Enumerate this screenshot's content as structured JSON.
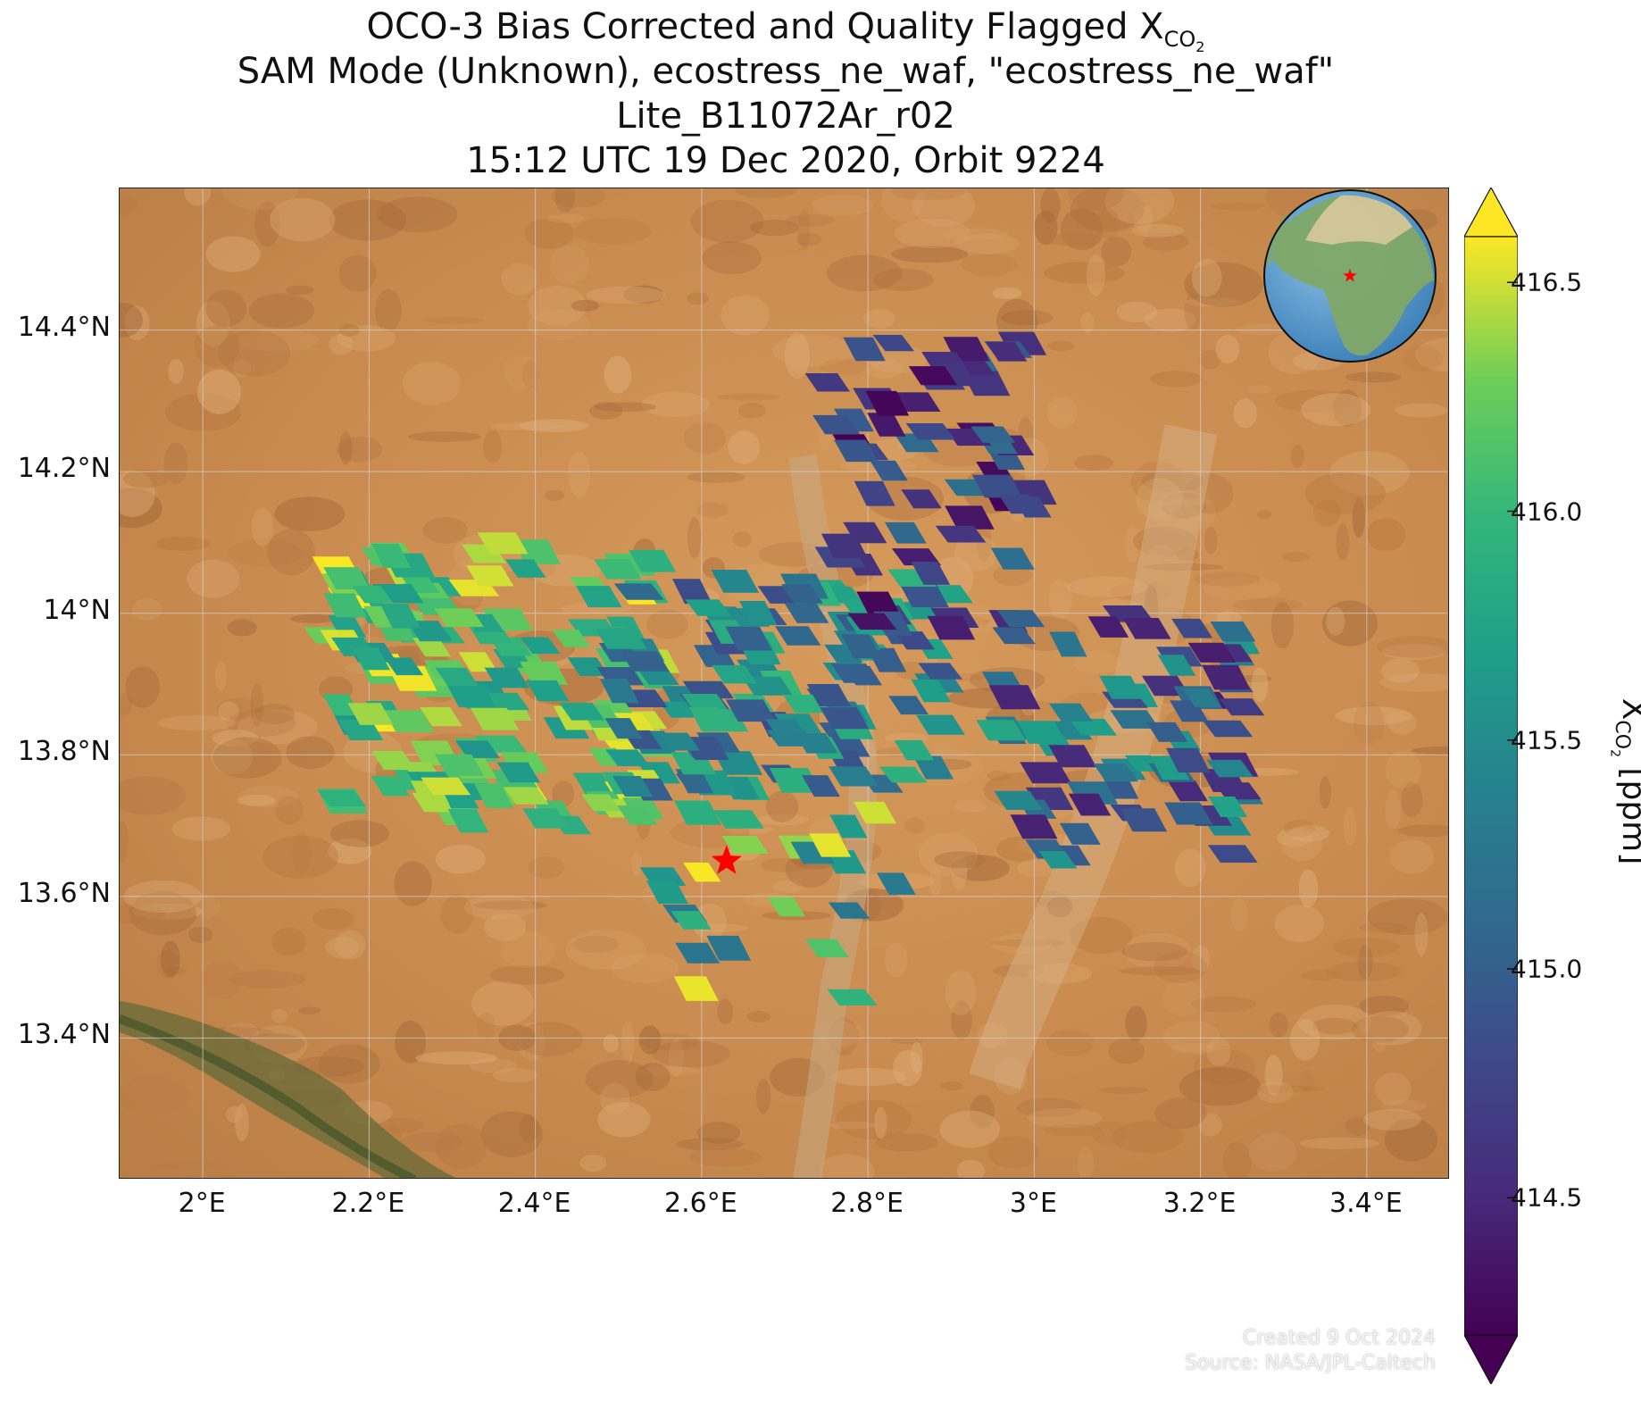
{
  "title": {
    "line1_prefix": "OCO-3 Bias Corrected and Quality Flagged X",
    "line1_sub": "CO",
    "line1_sub2": "2",
    "line2": "SAM Mode (Unknown), ecostress_ne_waf, \"ecostress_ne_waf\"",
    "line3": "Lite_B11072Ar_r02",
    "line4": "15:12 UTC 19 Dec 2020, Orbit 9224"
  },
  "map": {
    "lon_range": [
      1.9,
      3.5
    ],
    "lat_range": [
      13.2,
      14.6
    ],
    "lon_ticks": [
      2.0,
      2.2,
      2.4,
      2.6,
      2.8,
      3.0,
      3.2,
      3.4
    ],
    "lon_tick_labels": [
      "2°E",
      "2.2°E",
      "2.4°E",
      "2.6°E",
      "2.8°E",
      "3°E",
      "3.2°E",
      "3.4°E"
    ],
    "lat_ticks": [
      13.4,
      13.6,
      13.8,
      14.0,
      14.2,
      14.4
    ],
    "lat_tick_labels": [
      "13.4°N",
      "13.6°N",
      "13.8°N",
      "14°N",
      "14.2°N",
      "14.4°N"
    ],
    "grid": true,
    "background": "satellite imagery (Sahel, tan/orange terrain with dark green river valley in lower-left)",
    "target_marker": {
      "lon": 2.63,
      "lat": 13.65,
      "symbol": "star",
      "color": "#ff0000"
    },
    "inset_globe": {
      "position": "top-right",
      "marker_color": "#ff0000"
    }
  },
  "credits": {
    "created": "Created 9 Oct 2024",
    "source": "Source: NASA/JPL-Caltech"
  },
  "colorbar": {
    "colormap": "viridis",
    "range": [
      414.2,
      416.6
    ],
    "extend": "both",
    "ticks": [
      414.5,
      415.0,
      415.5,
      416.0,
      416.5
    ],
    "tick_labels": [
      "414.5",
      "415.0",
      "415.5",
      "416.0",
      "416.5"
    ],
    "label_prefix": "X",
    "label_sub": "CO",
    "label_sub2": "2",
    "label_suffix": " [ppm]"
  },
  "chart_data": {
    "type": "scatter",
    "subtype": "footprint-map",
    "value_unit": "ppm",
    "clusters": [
      {
        "region": "western high cluster",
        "lon_range": [
          2.15,
          2.55
        ],
        "lat_range": [
          13.7,
          14.1
        ],
        "xco2_typical": [
          415.6,
          416.6
        ]
      },
      {
        "region": "central mixed cluster",
        "lon_range": [
          2.5,
          2.9
        ],
        "lat_range": [
          13.75,
          14.05
        ],
        "xco2_typical": [
          414.8,
          416.0
        ]
      },
      {
        "region": "northern low cluster",
        "lon_range": [
          2.75,
          3.0
        ],
        "lat_range": [
          13.95,
          14.4
        ],
        "xco2_typical": [
          414.2,
          415.2
        ]
      },
      {
        "region": "eastern scattered cluster",
        "lon_range": [
          2.95,
          3.25
        ],
        "lat_range": [
          13.65,
          14.0
        ],
        "xco2_typical": [
          414.4,
          415.8
        ]
      },
      {
        "region": "southern scattered",
        "lon_range": [
          2.55,
          2.85
        ],
        "lat_range": [
          13.45,
          13.75
        ],
        "xco2_typical": [
          415.2,
          416.6
        ]
      }
    ]
  }
}
